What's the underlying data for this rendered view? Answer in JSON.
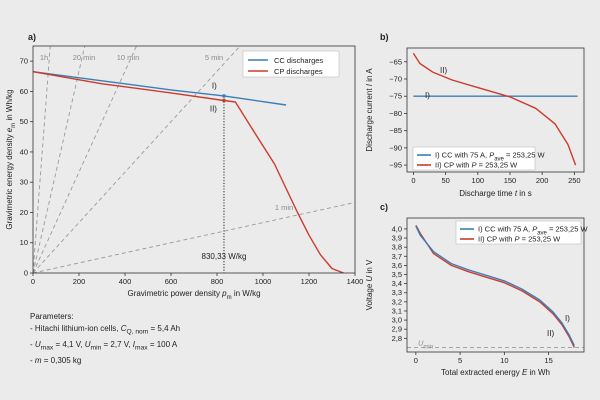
{
  "colors": {
    "cc": "#3a7fb5",
    "cp": "#cc3b2c",
    "iso": "#9a9a9a",
    "axis": "#333333",
    "background": "#ebebeb"
  },
  "chart_data": [
    {
      "panel": "a)",
      "type": "line",
      "xlabel": "Gravimetric power density p_m in W/kg",
      "ylabel": "Gravimetric energy density e_m in Wh/kg",
      "xlim": [
        0,
        1400
      ],
      "ylim": [
        0,
        75
      ],
      "xticks": [
        0,
        200,
        400,
        600,
        800,
        1000,
        1200,
        1400
      ],
      "yticks": [
        0,
        10,
        20,
        30,
        40,
        50,
        60,
        70
      ],
      "legend": {
        "placement": "top-right",
        "entries": [
          "CC discharges",
          "CP discharges"
        ]
      },
      "grid": false,
      "series": [
        {
          "name": "CC discharges",
          "color": "#3a7fb5",
          "x": [
            0,
            300,
            600,
            830,
            1100
          ],
          "y": [
            66.5,
            63.5,
            60.5,
            58.5,
            55.5
          ]
        },
        {
          "name": "CP discharges",
          "color": "#cc3b2c",
          "x": [
            0,
            300,
            600,
            830,
            880,
            950,
            1050,
            1150,
            1200,
            1250,
            1300,
            1350
          ],
          "y": [
            66.5,
            62.5,
            59.5,
            57.0,
            56.5,
            48,
            36,
            20,
            12.5,
            6,
            1.5,
            0
          ]
        }
      ],
      "isolines": [
        {
          "label": "1h",
          "hours": 1
        },
        {
          "label": "20 min",
          "hours": 0.3333
        },
        {
          "label": "10 min",
          "hours": 0.1667
        },
        {
          "label": "5 min",
          "hours": 0.0833
        },
        {
          "label": "1 min",
          "hours": 0.01667
        }
      ],
      "marker_line": {
        "x": 830.33,
        "label": "830,33 W/kg"
      },
      "point_labels": [
        {
          "text": "I)",
          "x": 830,
          "y": 61
        },
        {
          "text": "II)",
          "x": 795,
          "y": 54
        }
      ]
    },
    {
      "panel": "b)",
      "type": "line",
      "xlabel": "Discharge time t in s",
      "ylabel": "Discharge current I in A",
      "xlim": [
        -10,
        265
      ],
      "ylim": [
        -97,
        -61
      ],
      "xticks": [
        0,
        50,
        100,
        150,
        200,
        250
      ],
      "yticks": [
        -95,
        -90,
        -85,
        -80,
        -75,
        -70,
        -65
      ],
      "legend": {
        "placement": "bottom-left",
        "entries": [
          "I) CC with 75 A, P_ave = 253,25 W",
          "II) CP with P = 253,25 W"
        ]
      },
      "series": [
        {
          "name": "I) CC with 75 A, P_ave = 253,25 W",
          "color": "#3a7fb5",
          "x": [
            0,
            255
          ],
          "y": [
            -75,
            -75
          ]
        },
        {
          "name": "II) CP with P = 253,25 W",
          "color": "#cc3b2c",
          "x": [
            0,
            10,
            30,
            60,
            100,
            150,
            190,
            220,
            240,
            252
          ],
          "y": [
            -62.5,
            -65.5,
            -68.0,
            -70.3,
            -72.5,
            -75.2,
            -78.5,
            -83.0,
            -89.0,
            -95.0
          ]
        }
      ],
      "point_labels": [
        {
          "text": "II)",
          "x": 25,
          "y": -68
        },
        {
          "text": "I)",
          "x": 5,
          "y": -74
        }
      ]
    },
    {
      "panel": "c)",
      "type": "line",
      "xlabel": "Total extracted energy E in Wh",
      "ylabel": "Voltage U in V",
      "xlim": [
        -1,
        19
      ],
      "ylim": [
        2.65,
        4.12
      ],
      "xticks": [
        0,
        5,
        10,
        15
      ],
      "yticks": [
        2.8,
        2.9,
        3.0,
        3.1,
        3.2,
        3.3,
        3.4,
        3.5,
        3.6,
        3.7,
        3.8,
        3.9,
        4.0
      ],
      "legend": {
        "placement": "top-right",
        "entries": [
          "I) CC with 75 A, P_ave = 253,25 W",
          "II) CP with P = 253,25 W"
        ]
      },
      "umin_line": {
        "y": 2.7,
        "label": "U_min"
      },
      "series": [
        {
          "name": "I) CC with 75 A, P_ave = 253,25 W",
          "color": "#3a7fb5",
          "x": [
            0,
            0.5,
            2,
            4,
            6,
            8,
            10,
            12,
            14,
            15.5,
            16.5,
            17.3,
            17.9
          ],
          "y": [
            4.03,
            3.93,
            3.75,
            3.62,
            3.55,
            3.49,
            3.43,
            3.34,
            3.22,
            3.09,
            2.97,
            2.84,
            2.72
          ]
        },
        {
          "name": "II) CP with P = 253,25 W",
          "color": "#cc3b2c",
          "x": [
            0,
            0.5,
            2,
            4,
            6,
            8,
            10,
            12,
            14,
            15.5,
            16.5,
            17.3,
            17.9
          ],
          "y": [
            4.04,
            3.95,
            3.73,
            3.6,
            3.53,
            3.47,
            3.41,
            3.32,
            3.2,
            3.07,
            2.95,
            2.82,
            2.7
          ]
        }
      ],
      "point_labels": [
        {
          "text": "I)",
          "x": 17.3,
          "y": 3.04
        },
        {
          "text": "II)",
          "x": 16.0,
          "y": 2.85
        }
      ]
    }
  ],
  "parameters": {
    "heading": "Parameters:",
    "cell_prefix": "- Hitachi lithium-ion cells, ",
    "cell_symbol": "C",
    "cell_sub": "Q, nom",
    "cell_value": " = 5,4 Ah",
    "umax_sym": "U",
    "umax_sub": "max",
    "umax_val": " = 4,1 V, ",
    "umin_sym": "U",
    "umin_sub": "min",
    "umin_val": " = 2,7 V, ",
    "imax_sym": "I",
    "imax_sub": "max",
    "imax_val": " = 100 A",
    "mass_sym": "m",
    "mass_val": " = 0,305 kg"
  }
}
